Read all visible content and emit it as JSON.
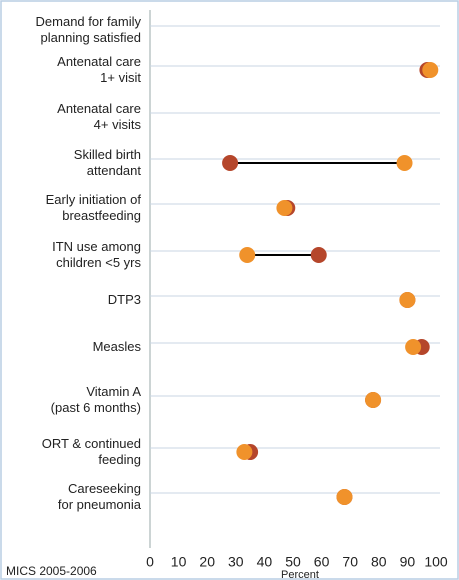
{
  "chart_data": {
    "type": "dumbbell",
    "categories": [
      "Demand for family\nplanning satisfied",
      "Antenatal care\n1+ visit",
      "Antenatal care\n4+ visits",
      "Skilled birth\nattendant",
      "Early initiation of\nbreastfeeding",
      "ITN use among\nchildren <5 yrs",
      "DTP3",
      "Measles",
      "Vitamin A\n(past 6 months)",
      "ORT & continued\nfeeding",
      "Careseeking\nfor pneumonia"
    ],
    "series": [
      {
        "color": "#b5462b",
        "values": [
          null,
          97,
          null,
          28,
          48,
          59,
          90,
          95,
          78,
          35,
          68
        ]
      },
      {
        "color": "#f0922b",
        "values": [
          null,
          98,
          null,
          89,
          47,
          34,
          90,
          92,
          78,
          33,
          68
        ]
      }
    ],
    "xlim": [
      0,
      100
    ],
    "xticks": [
      0,
      10,
      20,
      30,
      40,
      50,
      60,
      70,
      80,
      90,
      100
    ],
    "xlabel": "Percent",
    "source": "MICS 2005-2006",
    "grid": true
  }
}
